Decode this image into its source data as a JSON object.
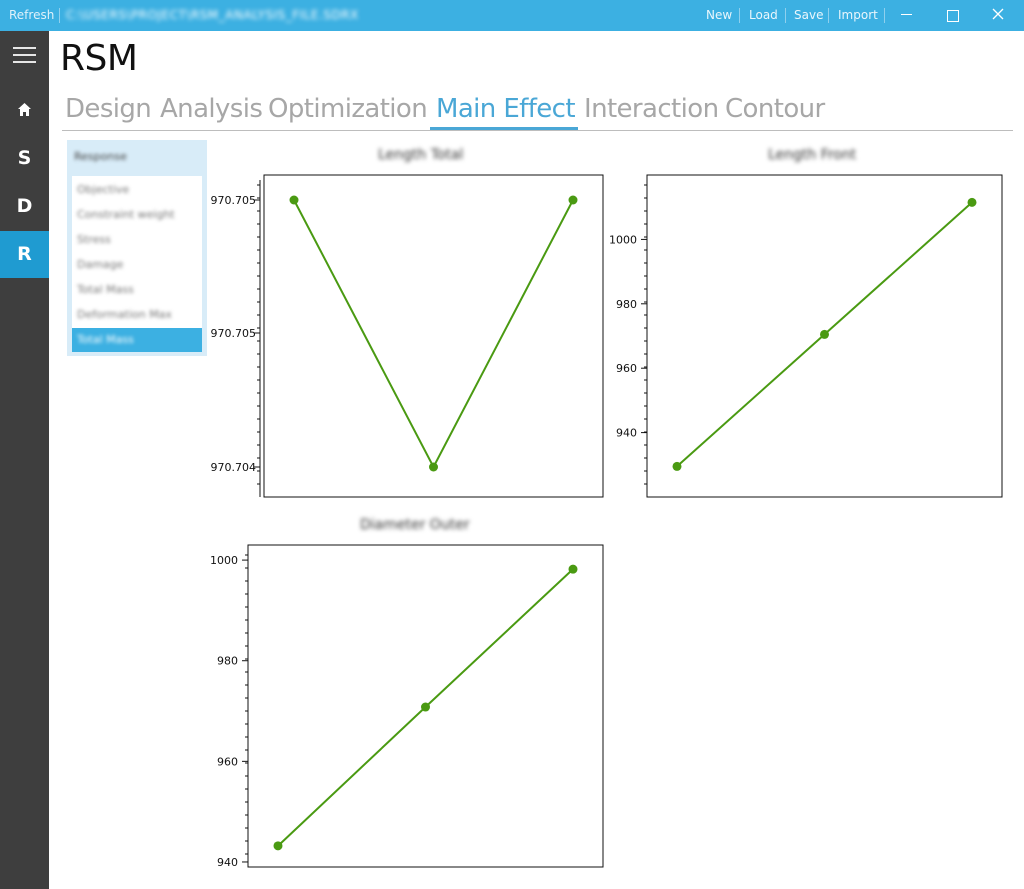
{
  "titlebar": {
    "refresh_label": "Refresh",
    "file_path": "C:\\USERS\\PROJECT\\RSM_ANALYSIS_FILE.SDRX",
    "menu": [
      "New",
      "Load",
      "Save",
      "Import"
    ],
    "background": "#3cb0e2"
  },
  "sidebar": {
    "items": [
      {
        "icon": "hamburger-menu-icon"
      },
      {
        "icon": "home-icon"
      },
      {
        "label": "S"
      },
      {
        "label": "D"
      },
      {
        "label": "R",
        "active": true
      }
    ],
    "background": "#3e3e3e",
    "active_color": "#1f9bd1"
  },
  "app": {
    "title": "RSM"
  },
  "tabs": [
    {
      "label": "Design"
    },
    {
      "label": "Analysis"
    },
    {
      "label": "Optimization"
    },
    {
      "label": "Main Effect",
      "active": true
    },
    {
      "label": "Interaction"
    },
    {
      "label": "Contour"
    }
  ],
  "response_panel": {
    "header": "Response",
    "items": [
      "Objective",
      "Constraint weight",
      "Stress",
      "Damage",
      "Total Mass",
      "Deformation Max",
      "Total Mass"
    ],
    "selected_index": 6
  },
  "accent_color": "#4aa7d6",
  "series_color": "#4a9a12",
  "charts": [
    {
      "title": "Length Total",
      "chart_data": {
        "type": "line",
        "x": [
          1,
          2,
          3
        ],
        "y": [
          970.705,
          970.704,
          970.705
        ],
        "ytick_labels": [
          "970.705",
          "970.705",
          "970.704"
        ]
      }
    },
    {
      "title": "Length Front",
      "chart_data": {
        "type": "line",
        "x": [
          1,
          2,
          3
        ],
        "y": [
          929.5,
          970.5,
          1011.5
        ],
        "ylim": [
          920,
          1020
        ],
        "yticks": [
          940,
          960,
          980,
          1000
        ]
      }
    },
    {
      "title": "Diameter Outer",
      "chart_data": {
        "type": "line",
        "x": [
          1,
          2,
          3
        ],
        "y": [
          943.2,
          970.8,
          998.2
        ],
        "ylim": [
          939,
          1003
        ],
        "yticks": [
          940,
          960,
          980,
          1000
        ]
      }
    }
  ]
}
